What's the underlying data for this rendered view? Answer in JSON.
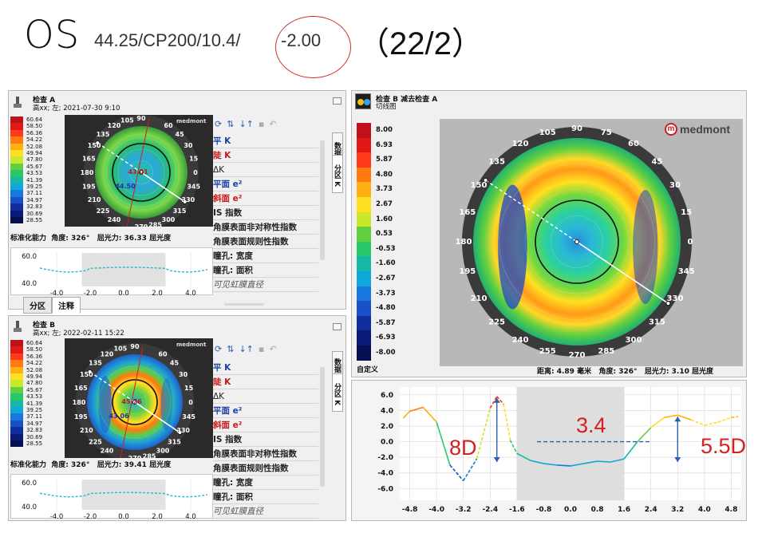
{
  "title": {
    "eye": "OS",
    "params": "44.25/CP200/10.4/",
    "power": "-2.00",
    "date": "（22/2）",
    "circle_color": "#d03030"
  },
  "scales": {
    "axial": [
      "60.64",
      "58.50",
      "56.36",
      "54.22",
      "52.08",
      "49.94",
      "47.80",
      "45.67",
      "43.53",
      "41.39",
      "39.25",
      "37.11",
      "34.97",
      "32.83",
      "30.69",
      "28.55"
    ],
    "axial_colors": [
      "#c0101a",
      "#e01818",
      "#ff3a1a",
      "#ff7a10",
      "#ffb010",
      "#ffe020",
      "#c8e828",
      "#60d040",
      "#28c868",
      "#18b8a8",
      "#10a8d8",
      "#1878e0",
      "#1850c8",
      "#102e9c",
      "#0a1a78",
      "#061050"
    ],
    "tangential": [
      "8.00",
      "6.93",
      "5.87",
      "4.80",
      "3.73",
      "2.67",
      "1.60",
      "0.53",
      "-0.53",
      "-1.60",
      "-2.67",
      "-3.73",
      "-4.80",
      "-5.87",
      "-6.93",
      "-8.00"
    ],
    "tangential_colors": [
      "#c0101a",
      "#e01818",
      "#ff3a1a",
      "#ff7a10",
      "#ffb010",
      "#ffe020",
      "#c8e828",
      "#60d040",
      "#28c868",
      "#18b8a8",
      "#10a8d8",
      "#1878e0",
      "#1850c8",
      "#102e9c",
      "#0a1a78",
      "#061050"
    ]
  },
  "exam_a": {
    "title": "检查 A",
    "subtitle": "高xx; 左; 2021-07-30 9:10",
    "center_val": "44.50",
    "upper_val": "43.01",
    "status_left": "标准化能力",
    "angle_label": "角度: 326°",
    "power_label": "屈光力: 36.33 屈光度",
    "angles": [
      "90",
      "60",
      "45",
      "30",
      "15",
      "0",
      "345",
      "330",
      "315",
      "300",
      "285",
      "270",
      "240",
      "225",
      "210",
      "195",
      "180",
      "165",
      "150",
      "135",
      "120",
      "105"
    ],
    "chart_y": [
      "60.0",
      "40.0"
    ],
    "chart_x": [
      "-4.0",
      "-2.0",
      "0.0",
      "2.0",
      "4.0"
    ],
    "tabs": [
      "分区",
      "注释"
    ],
    "vtabs": [
      "数据",
      "分区 K"
    ]
  },
  "exam_b": {
    "title": "检查 B",
    "subtitle": "高xx; 左; 2022-02-11 15:22",
    "center_val": "43.06",
    "upper_val": "45.76",
    "status_left": "标准化能力",
    "angle_label": "角度: 326°",
    "power_label": "屈光力: 39.41 屈光度",
    "angles": [
      "90",
      "60",
      "45",
      "30",
      "15",
      "0",
      "345",
      "330",
      "315",
      "300",
      "285",
      "270",
      "240",
      "225",
      "210",
      "195",
      "180",
      "165",
      "150",
      "135",
      "120",
      "105"
    ],
    "chart_y": [
      "60.0",
      "40.0"
    ],
    "chart_x": [
      "-4.0",
      "-2.0",
      "0.0",
      "2.0",
      "4.0"
    ],
    "vtabs": [
      "数据",
      "分区 K"
    ]
  },
  "indices": {
    "flat_k": "平 K",
    "steep_k": "陡 K",
    "delta_k": "ΔK",
    "flat_e": "平面 e²",
    "steep_e": "斜面 e²",
    "is_index": "IS 指数",
    "asym": "角膜表面非对称性指数",
    "reg": "角膜表面规则性指数",
    "pupil_w": "瞳孔: 宽度",
    "pupil_a": "瞳孔: 面积",
    "hvid": "可见虹膜直径"
  },
  "diff": {
    "title": "检查 B 减去检查 A",
    "subtitle": "切线图",
    "brand": "medmont",
    "brand_icon": "m",
    "custom": "自定义",
    "distance": "距离: 4.89 毫米",
    "angle": "角度: 326°",
    "power": "屈光力: 3.10 屈光度",
    "angles": [
      "90",
      "105",
      "75",
      "120",
      "60",
      "135",
      "45",
      "150",
      "30",
      "165",
      "15",
      "180",
      "0",
      "195",
      "345",
      "210",
      "330",
      "225",
      "315",
      "240",
      "300",
      "255",
      "285",
      "270"
    ],
    "vtab": "数据"
  },
  "annotations": {
    "a8d": "8D",
    "a34": "3.4",
    "a55": "5.5D",
    "red": "#d42020",
    "blue": "#2a5fb0"
  },
  "chart_data": {
    "type": "line",
    "x": [
      -5.0,
      -4.8,
      -4.4,
      -4.0,
      -3.6,
      -3.2,
      -2.8,
      -2.4,
      -2.2,
      -2.0,
      -1.8,
      -1.6,
      -1.2,
      -0.8,
      -0.4,
      0.0,
      0.4,
      0.8,
      1.2,
      1.6,
      2.0,
      2.4,
      2.8,
      3.2,
      3.6,
      4.0,
      4.4,
      4.8,
      5.0
    ],
    "y": [
      3.0,
      3.9,
      4.4,
      2.5,
      -3.0,
      -5.0,
      -2.2,
      4.3,
      5.8,
      4.8,
      0.2,
      -1.5,
      -2.4,
      -2.8,
      -3.0,
      -3.1,
      -2.8,
      -2.5,
      -2.6,
      -2.2,
      0.0,
      1.8,
      3.1,
      3.4,
      2.8,
      2.1,
      2.5,
      3.1,
      3.2
    ],
    "xticks": [
      "-4.8",
      "-4.0",
      "-3.2",
      "-2.4",
      "-1.6",
      "-0.8",
      "0.0",
      "0.8",
      "1.6",
      "2.4",
      "3.2",
      "4.0",
      "4.8"
    ],
    "yticks": [
      "6.0",
      "4.0",
      "2.0",
      "0.0",
      "-2.0",
      "-4.0",
      "-6.0"
    ],
    "xlim": [
      -5.1,
      5.1
    ],
    "ylim": [
      -7.5,
      7.0
    ],
    "shaded_range": [
      -1.6,
      1.6
    ],
    "grid": true
  }
}
